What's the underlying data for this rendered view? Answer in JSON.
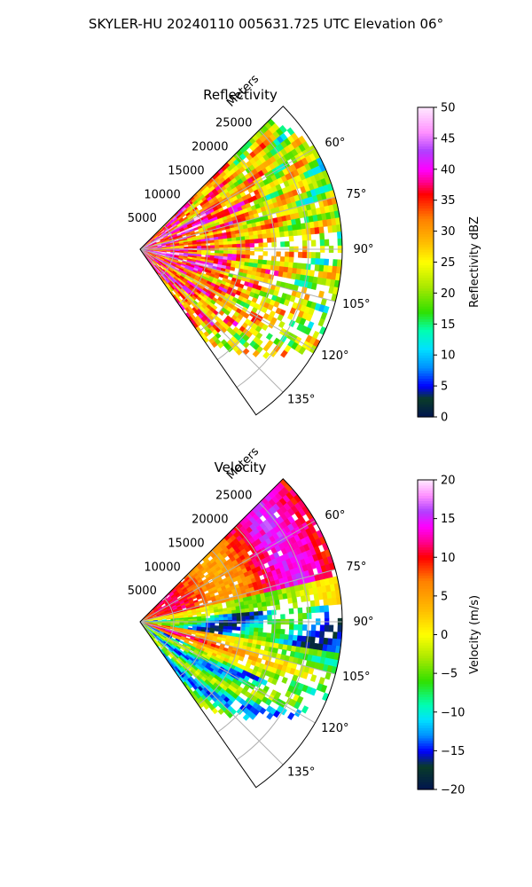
{
  "figure": {
    "suptitle": "SKYLER-HU  20240110  005631.725 UTC Elevation 06°"
  },
  "chart_data": [
    {
      "type": "heatmap",
      "projection": "polar-sector",
      "title": "Reflectivity",
      "range_label": "Meters",
      "range_ticks": [
        5000,
        10000,
        15000,
        20000,
        25000
      ],
      "range_tick_labels": [
        "5000",
        "10000",
        "15000",
        "20000",
        "25000"
      ],
      "rmax": 30000,
      "azimuth_range": [
        45,
        145
      ],
      "azimuth_ticks": [
        60,
        75,
        90,
        105,
        120,
        135
      ],
      "azimuth_tick_labels": [
        "60°",
        "75°",
        "90°",
        "105°",
        "120°",
        "135°"
      ],
      "grid": true,
      "colorbar": {
        "label": "Reflectivity dBZ",
        "min": 0,
        "max": 50,
        "ticks": [
          0,
          5,
          10,
          15,
          20,
          25,
          30,
          35,
          40,
          45,
          50
        ],
        "tick_labels": [
          "0",
          "5",
          "10",
          "15",
          "20",
          "25",
          "30",
          "35",
          "40",
          "45",
          "50"
        ],
        "stops": [
          {
            "v": 0,
            "c": "#001450"
          },
          {
            "v": 3,
            "c": "#0a3c28"
          },
          {
            "v": 5,
            "c": "#0000ff"
          },
          {
            "v": 8,
            "c": "#0090ff"
          },
          {
            "v": 11,
            "c": "#00e0ff"
          },
          {
            "v": 14,
            "c": "#00ffb0"
          },
          {
            "v": 17,
            "c": "#30e000"
          },
          {
            "v": 21,
            "c": "#a8e800"
          },
          {
            "v": 25,
            "c": "#ffff00"
          },
          {
            "v": 28,
            "c": "#ffc000"
          },
          {
            "v": 32,
            "c": "#ff8000"
          },
          {
            "v": 36,
            "c": "#ff0000"
          },
          {
            "v": 38,
            "c": "#ff0090"
          },
          {
            "v": 40,
            "c": "#ff00ff"
          },
          {
            "v": 43,
            "c": "#b040ff"
          },
          {
            "v": 46,
            "c": "#ff90ff"
          },
          {
            "v": 50,
            "c": "#ffe8ff"
          }
        ]
      }
    },
    {
      "type": "heatmap",
      "projection": "polar-sector",
      "title": "Velocity",
      "range_label": "Meters",
      "range_ticks": [
        5000,
        10000,
        15000,
        20000,
        25000
      ],
      "range_tick_labels": [
        "5000",
        "10000",
        "15000",
        "20000",
        "25000"
      ],
      "rmax": 30000,
      "azimuth_range": [
        45,
        145
      ],
      "azimuth_ticks": [
        60,
        75,
        90,
        105,
        120,
        135
      ],
      "azimuth_tick_labels": [
        "60°",
        "75°",
        "90°",
        "105°",
        "120°",
        "135°"
      ],
      "grid": true,
      "colorbar": {
        "label": "Velocity (m/s)",
        "min": -20,
        "max": 20,
        "ticks": [
          -20,
          -15,
          -10,
          -5,
          0,
          5,
          10,
          15,
          20
        ],
        "tick_labels": [
          "−20",
          "−15",
          "−10",
          "−5",
          "0",
          "5",
          "10",
          "15",
          "20"
        ],
        "stops": [
          {
            "v": -20,
            "c": "#001450"
          },
          {
            "v": -17,
            "c": "#0a3c28"
          },
          {
            "v": -15,
            "c": "#0000ff"
          },
          {
            "v": -13,
            "c": "#0090ff"
          },
          {
            "v": -11,
            "c": "#00e0ff"
          },
          {
            "v": -9,
            "c": "#00ffb0"
          },
          {
            "v": -6,
            "c": "#30e000"
          },
          {
            "v": -3,
            "c": "#a8e800"
          },
          {
            "v": 0,
            "c": "#ffff00"
          },
          {
            "v": 3,
            "c": "#ffc000"
          },
          {
            "v": 7,
            "c": "#ff8000"
          },
          {
            "v": 10,
            "c": "#ff0000"
          },
          {
            "v": 12,
            "c": "#ff0090"
          },
          {
            "v": 14,
            "c": "#ff00ff"
          },
          {
            "v": 16,
            "c": "#b040ff"
          },
          {
            "v": 18,
            "c": "#ff90ff"
          },
          {
            "v": 20,
            "c": "#ffe8ff"
          }
        ]
      }
    }
  ]
}
